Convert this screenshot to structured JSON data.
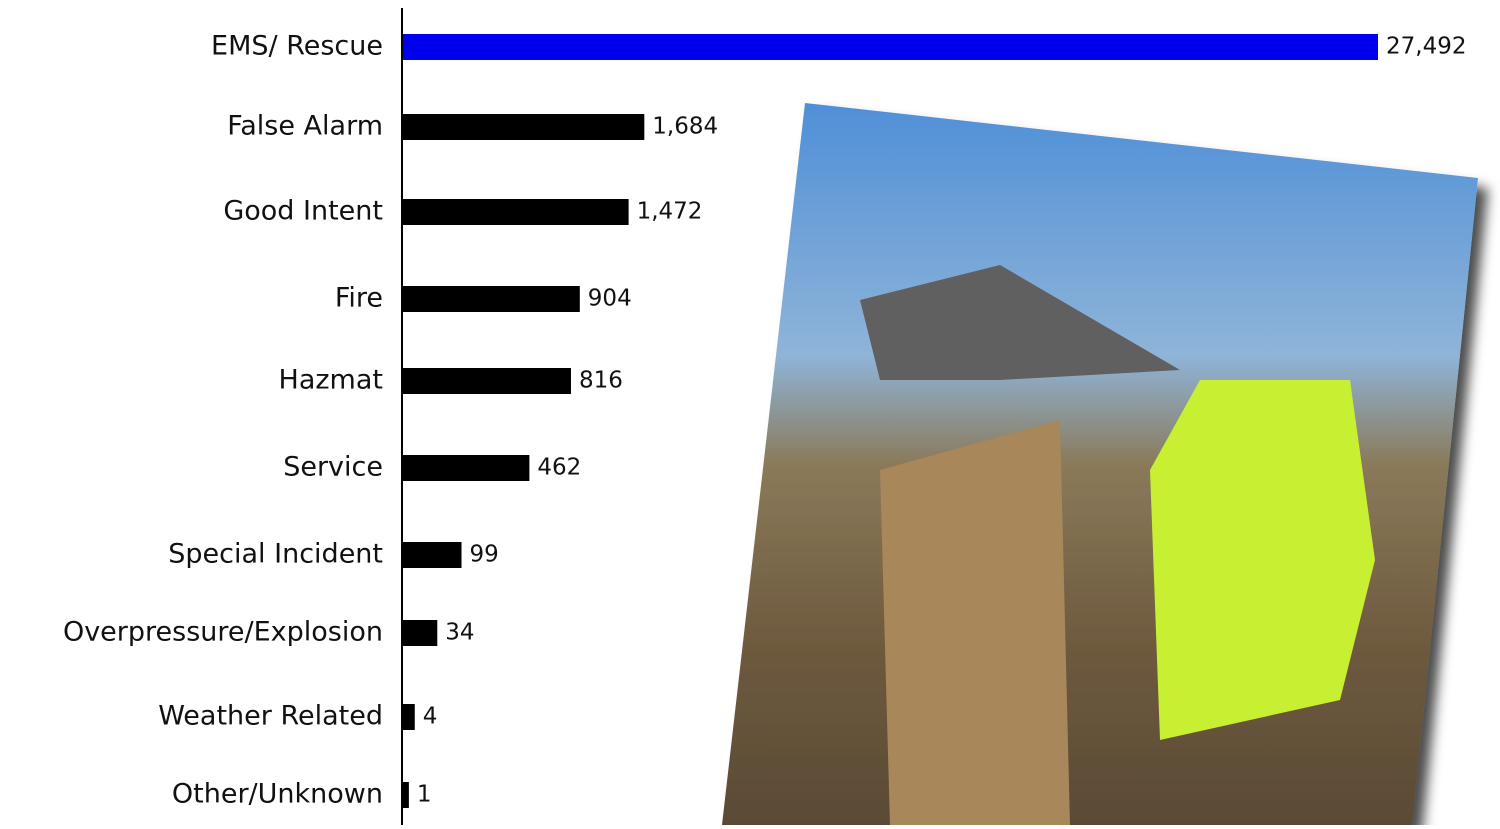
{
  "chart_data": {
    "type": "bar",
    "categories": [
      "EMS/ Rescue",
      "False Alarm",
      "Good Intent",
      "Fire",
      "Hazmat",
      "Service",
      "Special Incident",
      "Overpressure/Explosion",
      "Weather Related",
      "Other/Unknown"
    ],
    "values": [
      27492,
      1684,
      1472,
      904,
      816,
      462,
      99,
      34,
      4,
      1
    ],
    "value_labels": [
      "27,492",
      "1,684",
      "1,472",
      "904",
      "816",
      "462",
      "99",
      "34",
      "4",
      "1"
    ],
    "colors": [
      "#0000ee",
      "#000000",
      "#000000",
      "#000000",
      "#000000",
      "#000000",
      "#000000",
      "#000000",
      "#000000",
      "#000000"
    ]
  }
}
